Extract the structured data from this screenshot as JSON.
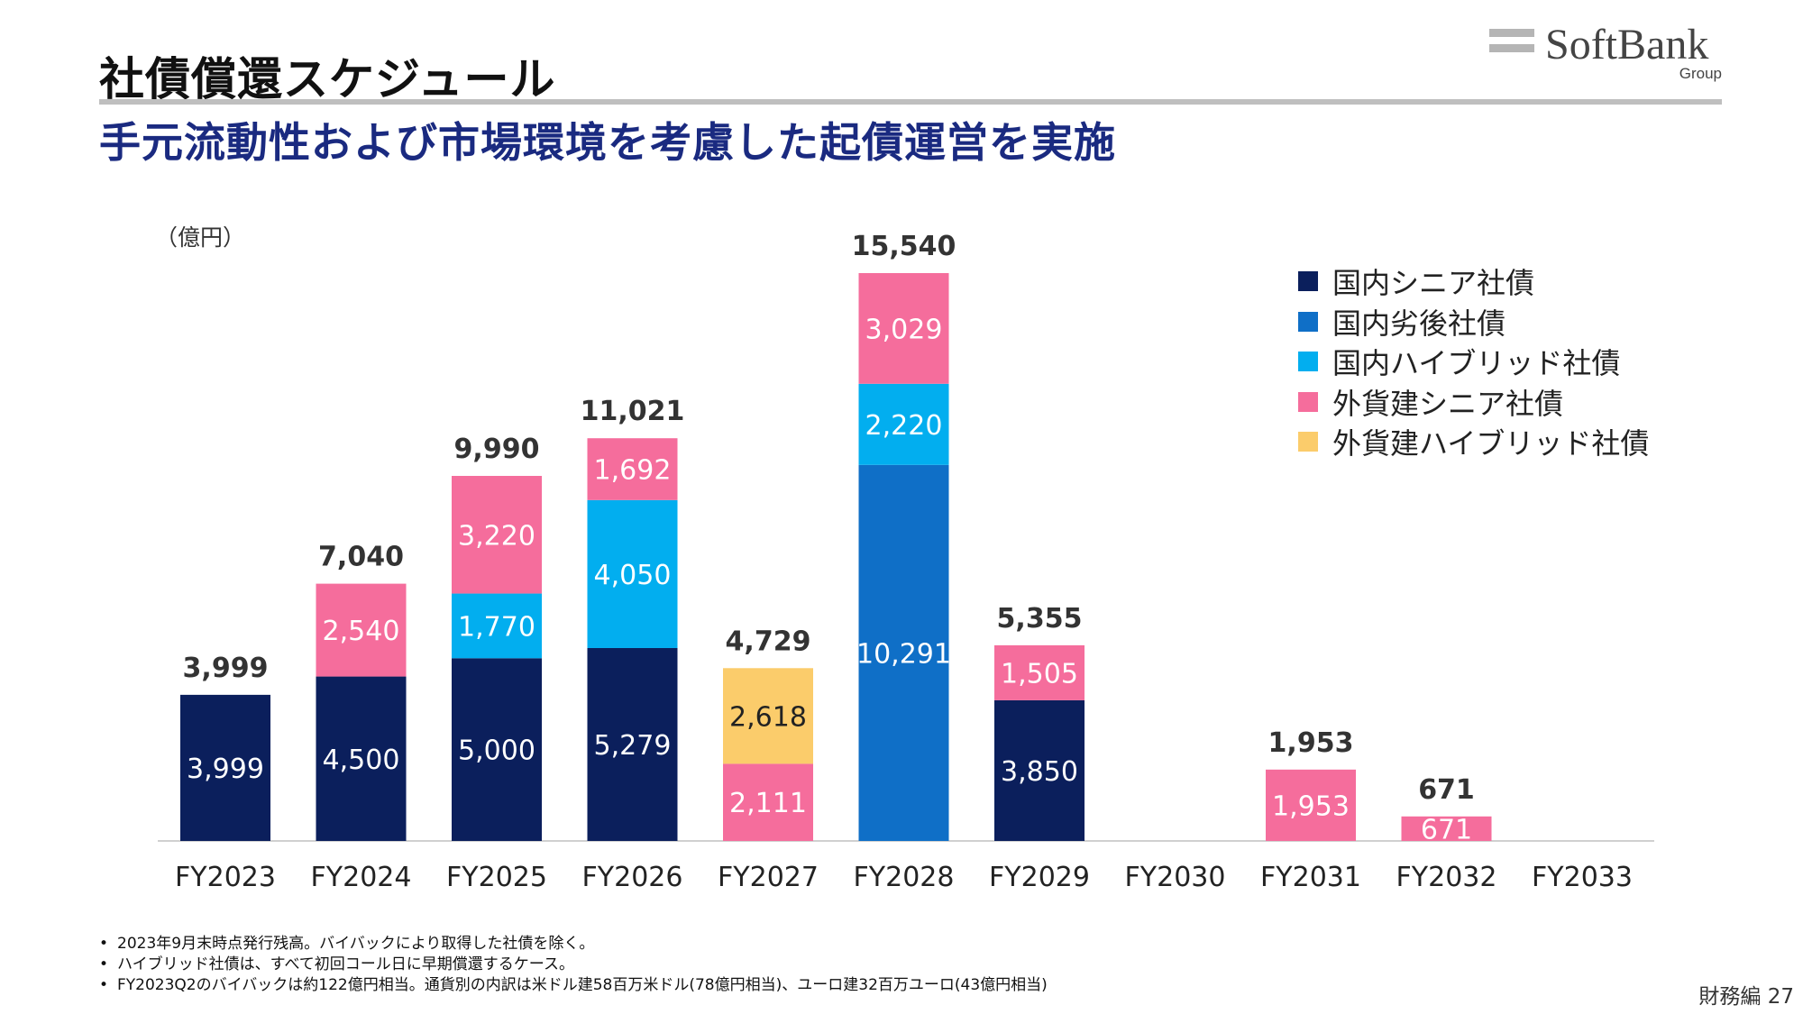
{
  "header": {
    "title": "社債償還スケジュール",
    "subtitle": "手元流動性および市場環境を考慮した起債運営を実施"
  },
  "logo": {
    "main": "SoftBank",
    "sub": "Group"
  },
  "chart_data": {
    "type": "bar",
    "stacked": true,
    "unit_label": "（億円）",
    "categories": [
      "FY2023",
      "FY2024",
      "FY2025",
      "FY2026",
      "FY2027",
      "FY2028",
      "FY2029",
      "FY2030",
      "FY2031",
      "FY2032",
      "FY2033"
    ],
    "totals": [
      "3,999",
      "7,040",
      "9,990",
      "11,021",
      "4,729",
      "15,540",
      "5,355",
      null,
      "1,953",
      "671",
      null
    ],
    "series": [
      {
        "name": "国内シニア社債",
        "color": "#0b1f5c",
        "values": [
          3999,
          4500,
          5000,
          5279,
          0,
          0,
          3850,
          0,
          0,
          0,
          0
        ]
      },
      {
        "name": "国内劣後社債",
        "color": "#0f6fc7",
        "values": [
          0,
          0,
          0,
          0,
          0,
          10291,
          0,
          0,
          0,
          0,
          0
        ]
      },
      {
        "name": "国内ハイブリッド社債",
        "color": "#02aeef",
        "values": [
          0,
          0,
          1770,
          4050,
          0,
          2220,
          0,
          0,
          0,
          0,
          0
        ]
      },
      {
        "name": "外貨建シニア社債",
        "color": "#f56d9c",
        "values": [
          0,
          2540,
          3220,
          1692,
          2111,
          3029,
          1505,
          0,
          1953,
          671,
          0
        ]
      },
      {
        "name": "外貨建ハイブリッド社債",
        "color": "#fbcc6b",
        "values": [
          0,
          0,
          0,
          0,
          2618,
          0,
          0,
          0,
          0,
          0,
          0
        ]
      }
    ],
    "ylim": [
      0,
      15540
    ],
    "legend_position": "top-right",
    "grid": false
  },
  "notes": [
    "2023年9月末時点発行残高。バイバックにより取得した社債を除く。",
    "ハイブリッド社債は、すべて初回コール日に早期償還するケース。",
    "FY2023Q2のバイバックは約122億円相当。通貨別の内訳は米ドル建58百万米ドル(78億円相当)、ユーロ建32百万ユーロ(43億円相当)"
  ],
  "footer": {
    "page": "財務編 27"
  }
}
